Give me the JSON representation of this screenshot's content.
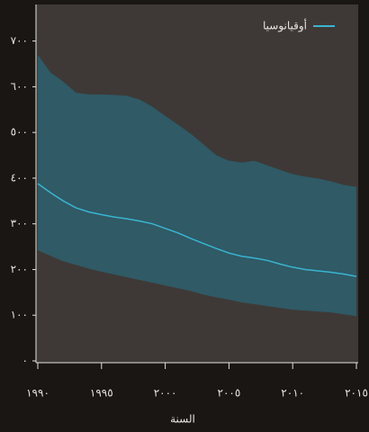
{
  "chart_data": {
    "type": "band-line",
    "x_label": "السنة",
    "x": [
      1990,
      1991,
      1992,
      1993,
      1994,
      1995,
      1996,
      1997,
      1998,
      1999,
      2000,
      2001,
      2002,
      2003,
      2004,
      2005,
      2006,
      2007,
      2008,
      2009,
      2010,
      2011,
      2012,
      2013,
      2014,
      2015
    ],
    "series": [
      {
        "name": "أوقيانوسيا",
        "color": "#3ab4d0",
        "band_color": "#2f5a66",
        "values": [
          388,
          368,
          350,
          335,
          326,
          320,
          315,
          311,
          306,
          300,
          290,
          280,
          268,
          257,
          246,
          236,
          229,
          225,
          220,
          212,
          205,
          200,
          197,
          194,
          190,
          185
        ],
        "upper": [
          670,
          631,
          611,
          587,
          583,
          583,
          582,
          580,
          572,
          556,
          536,
          517,
          497,
          474,
          450,
          438,
          434,
          438,
          428,
          418,
          409,
          403,
          399,
          393,
          385,
          381
        ],
        "lower": [
          242,
          230,
          218,
          210,
          202,
          195,
          189,
          183,
          177,
          171,
          165,
          159,
          153,
          145,
          139,
          134,
          128,
          124,
          120,
          116,
          112,
          110,
          108,
          106,
          102,
          98
        ]
      }
    ],
    "xlim": [
      1990,
      2015
    ],
    "xticks": [
      {
        "value": 1990,
        "label": "١٩٩٠"
      },
      {
        "value": 1995,
        "label": "١٩٩٥"
      },
      {
        "value": 2000,
        "label": "٢٠٠٠"
      },
      {
        "value": 2005,
        "label": "٢٠٠٥"
      },
      {
        "value": 2010,
        "label": "٢٠١٠"
      },
      {
        "value": 2015,
        "label": "٢٠١٥"
      }
    ],
    "ylim": [
      0,
      780
    ],
    "yticks": [
      {
        "value": 0,
        "label": "٠"
      },
      {
        "value": 100,
        "label": "١٠٠"
      },
      {
        "value": 200,
        "label": "٢٠٠"
      },
      {
        "value": 300,
        "label": "٣٠٠"
      },
      {
        "value": 400,
        "label": "٤٠٠"
      },
      {
        "value": 500,
        "label": "٥٠٠"
      },
      {
        "value": 600,
        "label": "٦٠٠"
      },
      {
        "value": 700,
        "label": "٧٠٠"
      }
    ],
    "legend": "upper-right"
  }
}
